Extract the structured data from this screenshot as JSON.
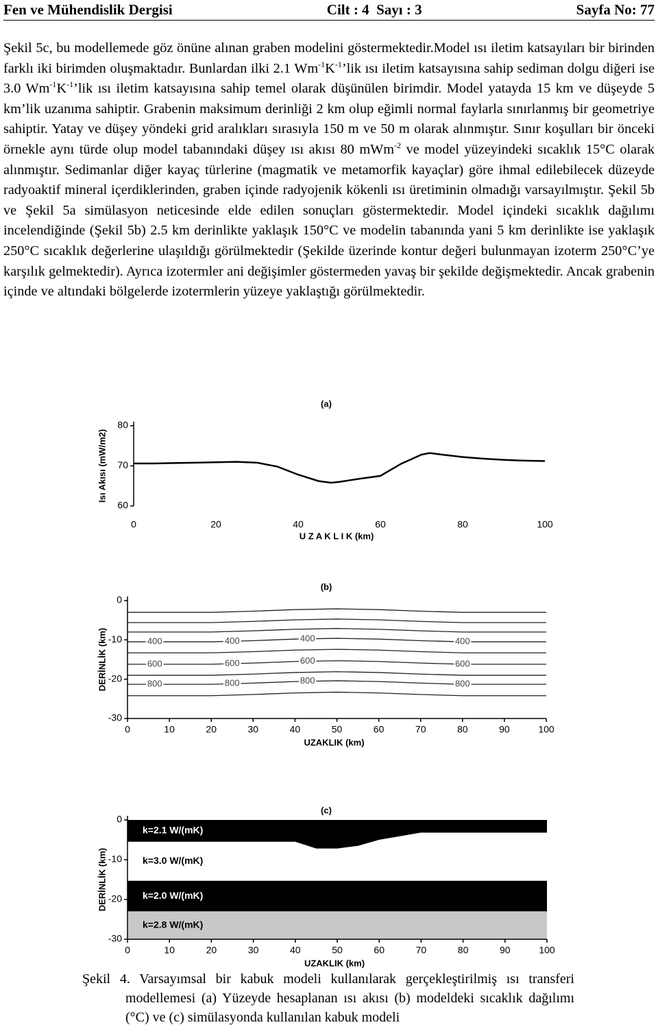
{
  "header": {
    "journal": "Fen ve Mühendislik Dergisi",
    "volume": "Cilt : 4  Sayı : 3",
    "page": "Sayfa No: 77"
  },
  "paragraph": [
    {
      "text": "Şekil 5c, bu modellemede göz önüne alınan graben modelini göstermektedir.Model ısı iletim katsayıları bir birinden farklı iki birimden oluşmaktadır. Bunlardan ilki 2.1 Wm"
    },
    {
      "sup": "-1"
    },
    {
      "text": "K"
    },
    {
      "sup": "-1"
    },
    {
      "text": "’lik ısı iletim katsayısına sahip sediman dolgu diğeri ise 3.0 Wm"
    },
    {
      "sup": "-1"
    },
    {
      "text": "K"
    },
    {
      "sup": "-1"
    },
    {
      "text": "’lik ısı iletim katsayısına sahip temel olarak düşünülen birimdir. Model yatayda 15 km ve düşeyde 5 km’lik uzanıma sahiptir. Grabenin maksimum derinliği 2 km olup eğimli normal faylarla sınırlanmış bir geometriye sahiptir. Yatay ve düşey yöndeki grid aralıkları sırasıyla 150 m ve 50 m olarak alınmıştır. Sınır koşulları bir önceki örnekle aynı türde olup model tabanındaki düşey ısı akısı 80 mWm"
    },
    {
      "sup": "-2"
    },
    {
      "text": " ve model yüzeyindeki sıcaklık 15°C olarak alınmıştır. Sedimanlar diğer kayaç türlerine (magmatik ve  metamorfik kayaçlar) göre ihmal edilebilecek düzeyde radyoaktif mineral içerdiklerinden, graben içinde radyojenik kökenli ısı üretiminin olmadığı varsayılmıştır. Şekil 5b ve Şekil 5a simülasyon neticesinde elde edilen sonuçları göstermektedir. Model içindeki sıcaklık dağılımı incelendiğinde (Şekil 5b) 2.5 km derinlikte yaklaşık 150°C ve modelin tabanında yani 5 km derinlikte ise yaklaşık 250°C sıcaklık değerlerine ulaşıldığı görülmektedir (Şekilde üzerinde kontur değeri bulunmayan izoterm 250°C’ye karşılık gelmektedir). Ayrıca izotermler ani değişimler göstermeden yavaş bir şekilde değişmektedir. Ancak grabenin içinde ve altındaki bölgelerde izotermlerin yüzeye yaklaştığı görülmektedir."
    }
  ],
  "chart_data": [
    {
      "type": "line",
      "title": "(a)",
      "x_label": "U Z A K L I K (km)",
      "y_label": "Isı Akısı (mW/m2)",
      "x": [
        0,
        5,
        10,
        15,
        20,
        25,
        30,
        35,
        40,
        45,
        48,
        50,
        55,
        60,
        65,
        70,
        72,
        75,
        80,
        85,
        90,
        95,
        100
      ],
      "series": [
        {
          "color": "#000000",
          "values": [
            70.6,
            70.6,
            70.7,
            70.8,
            70.9,
            71.0,
            70.8,
            69.8,
            67.8,
            66.2,
            65.8,
            66.0,
            66.8,
            67.5,
            70.5,
            72.8,
            73.2,
            72.8,
            72.2,
            71.8,
            71.5,
            71.3,
            71.2
          ]
        }
      ],
      "xlim": [
        0,
        100
      ],
      "xticks": [
        0,
        20,
        40,
        60,
        80,
        100
      ],
      "ylim": [
        60,
        80
      ],
      "yticks": [
        60,
        70,
        80
      ]
    },
    {
      "type": "contour",
      "title": "(b)",
      "x_label": "UZAKLIK (km)",
      "y_label": "DERİNLİK (km)",
      "x": [
        0,
        10,
        20,
        30,
        40,
        50,
        60,
        70,
        80,
        90,
        100
      ],
      "series": [
        {
          "color": "#222222",
          "values": [
            -3,
            -3,
            -3,
            -2.7,
            -2.3,
            -2.1,
            -2.3,
            -2.7,
            -3,
            -3,
            -3
          ]
        },
        {
          "color": "#222222",
          "values": [
            -5.6,
            -5.6,
            -5.6,
            -5.3,
            -4.9,
            -4.7,
            -4.9,
            -5.3,
            -5.6,
            -5.6,
            -5.6
          ]
        },
        {
          "color": "#222222",
          "values": [
            -8,
            -8,
            -8,
            -7.7,
            -7.3,
            -7.1,
            -7.3,
            -7.7,
            -8,
            -8,
            -8
          ]
        },
        {
          "name": "400",
          "color": "#222222",
          "values": [
            -10.5,
            -10.5,
            -10.5,
            -10.2,
            -9.8,
            -9.6,
            -9.8,
            -10.2,
            -10.5,
            -10.5,
            -10.5
          ]
        },
        {
          "color": "#222222",
          "values": [
            -13.3,
            -13.3,
            -13.3,
            -13,
            -12.6,
            -12.4,
            -12.6,
            -13,
            -13.3,
            -13.3,
            -13.3
          ]
        },
        {
          "name": "600",
          "color": "#222222",
          "values": [
            -16.2,
            -16.2,
            -16.2,
            -15.9,
            -15.5,
            -15.3,
            -15.5,
            -15.9,
            -16.2,
            -16.2,
            -16.2
          ]
        },
        {
          "color": "#222222",
          "values": [
            -19,
            -19,
            -19,
            -18.7,
            -18.3,
            -18.1,
            -18.3,
            -18.7,
            -19,
            -19,
            -19
          ]
        },
        {
          "name": "800",
          "color": "#222222",
          "values": [
            -21.3,
            -21.3,
            -21.3,
            -21,
            -20.6,
            -20.4,
            -20.6,
            -21,
            -21.3,
            -21.3,
            -21.3
          ]
        },
        {
          "color": "#222222",
          "values": [
            -24.2,
            -24.2,
            -24.2,
            -23.9,
            -23.5,
            -23.3,
            -23.5,
            -23.9,
            -24.2,
            -24.2,
            -24.2
          ]
        }
      ],
      "xlim": [
        0,
        100
      ],
      "xticks": [
        0,
        10,
        20,
        30,
        40,
        50,
        60,
        70,
        80,
        90,
        100
      ],
      "ylim": [
        -30,
        0
      ],
      "yticks": [
        0,
        -10,
        -20,
        -30
      ]
    },
    {
      "type": "layers",
      "title": "(c)",
      "x_label": "UZAKLIK (km)",
      "y_label": "DERİNLİK (km)",
      "x": [
        0,
        10,
        20,
        30,
        40,
        45,
        50,
        55,
        60,
        70,
        80,
        90,
        100
      ],
      "series": [
        {
          "name": "k=2.1 W/(mK)",
          "color": "#000000",
          "values": [
            -5.5,
            -5.5,
            -5.5,
            -5.5,
            -5.5,
            -7.2,
            -7.2,
            -6.5,
            -5,
            -3.2,
            -3.2,
            -3.2,
            -3.2
          ]
        },
        {
          "name": "k=3.0 W/(mK)",
          "color": "#ffffff",
          "values": [
            -15.3,
            -15.3,
            -15.3,
            -15.3,
            -15.3,
            -15.3,
            -15.3,
            -15.3,
            -15.3,
            -15.3,
            -15.3,
            -15.3,
            -15.3
          ]
        },
        {
          "name": "k=2.0 W/(mK)",
          "color": "#000000",
          "values": [
            -23,
            -23,
            -23,
            -23,
            -23,
            -23,
            -23,
            -23,
            -23,
            -23,
            -23,
            -23,
            -23
          ]
        },
        {
          "name": "k=2.8 W/(mK)",
          "color": "#c8c8c8",
          "values": [
            -30,
            -30,
            -30,
            -30,
            -30,
            -30,
            -30,
            -30,
            -30,
            -30,
            -30,
            -30,
            -30
          ]
        }
      ],
      "xlim": [
        0,
        100
      ],
      "xticks": [
        0,
        10,
        20,
        30,
        40,
        50,
        60,
        70,
        80,
        90,
        100
      ],
      "ylim": [
        -30,
        0
      ],
      "yticks": [
        0,
        -10,
        -20,
        -30
      ]
    }
  ],
  "caption": {
    "label": "Şekil 4.",
    "text": " Varsayımsal bir kabuk modeli kullanılarak gerçekleştirilmiş ısı transferi modellemesi (a) Yüzeyde hesaplanan ısı akısı (b) modeldeki sıcaklık dağılımı (°C) ve (c) simülasyonda kullanılan kabuk modeli"
  }
}
